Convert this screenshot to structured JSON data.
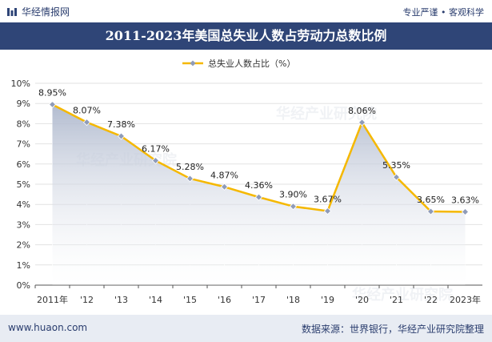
{
  "header": {
    "brand": "华经情报网",
    "tagline": "专业严谨 • 客观科学"
  },
  "footer": {
    "website": "www.huaon.com",
    "source": "数据来源：世界银行，华经产业研究院整理"
  },
  "watermark": "华经产业研究院",
  "colors": {
    "line": "#f5b800",
    "marker": "#8f9bb8",
    "area_top": "#b3bccf",
    "title_bg": "#2f4577"
  },
  "chart_data": {
    "type": "area",
    "title": "2011-2023年美国总失业人数占劳动力总数比例",
    "categories": [
      "2011年",
      "'12",
      "'13",
      "'14",
      "'15",
      "'16",
      "'17",
      "'18",
      "'19",
      "'20",
      "'21",
      "'22",
      "2023年"
    ],
    "series": [
      {
        "name": "总失业人数占比（%）",
        "values": [
          8.95,
          8.07,
          7.38,
          6.17,
          5.28,
          4.87,
          4.36,
          3.9,
          3.67,
          8.06,
          5.35,
          3.65,
          3.63
        ],
        "labels": [
          "8.95%",
          "8.07%",
          "7.38%",
          "6.17%",
          "5.28%",
          "4.87%",
          "4.36%",
          "3.90%",
          "3.67%",
          "8.06%",
          "5.35%",
          "3.65%",
          "3.63%"
        ]
      }
    ],
    "y_ticks": [
      "0%",
      "1%",
      "2%",
      "3%",
      "4%",
      "5%",
      "6%",
      "7%",
      "8%",
      "9%",
      "10%"
    ],
    "ylim": [
      0,
      10
    ],
    "grid": true,
    "legend_position": "top-center"
  }
}
